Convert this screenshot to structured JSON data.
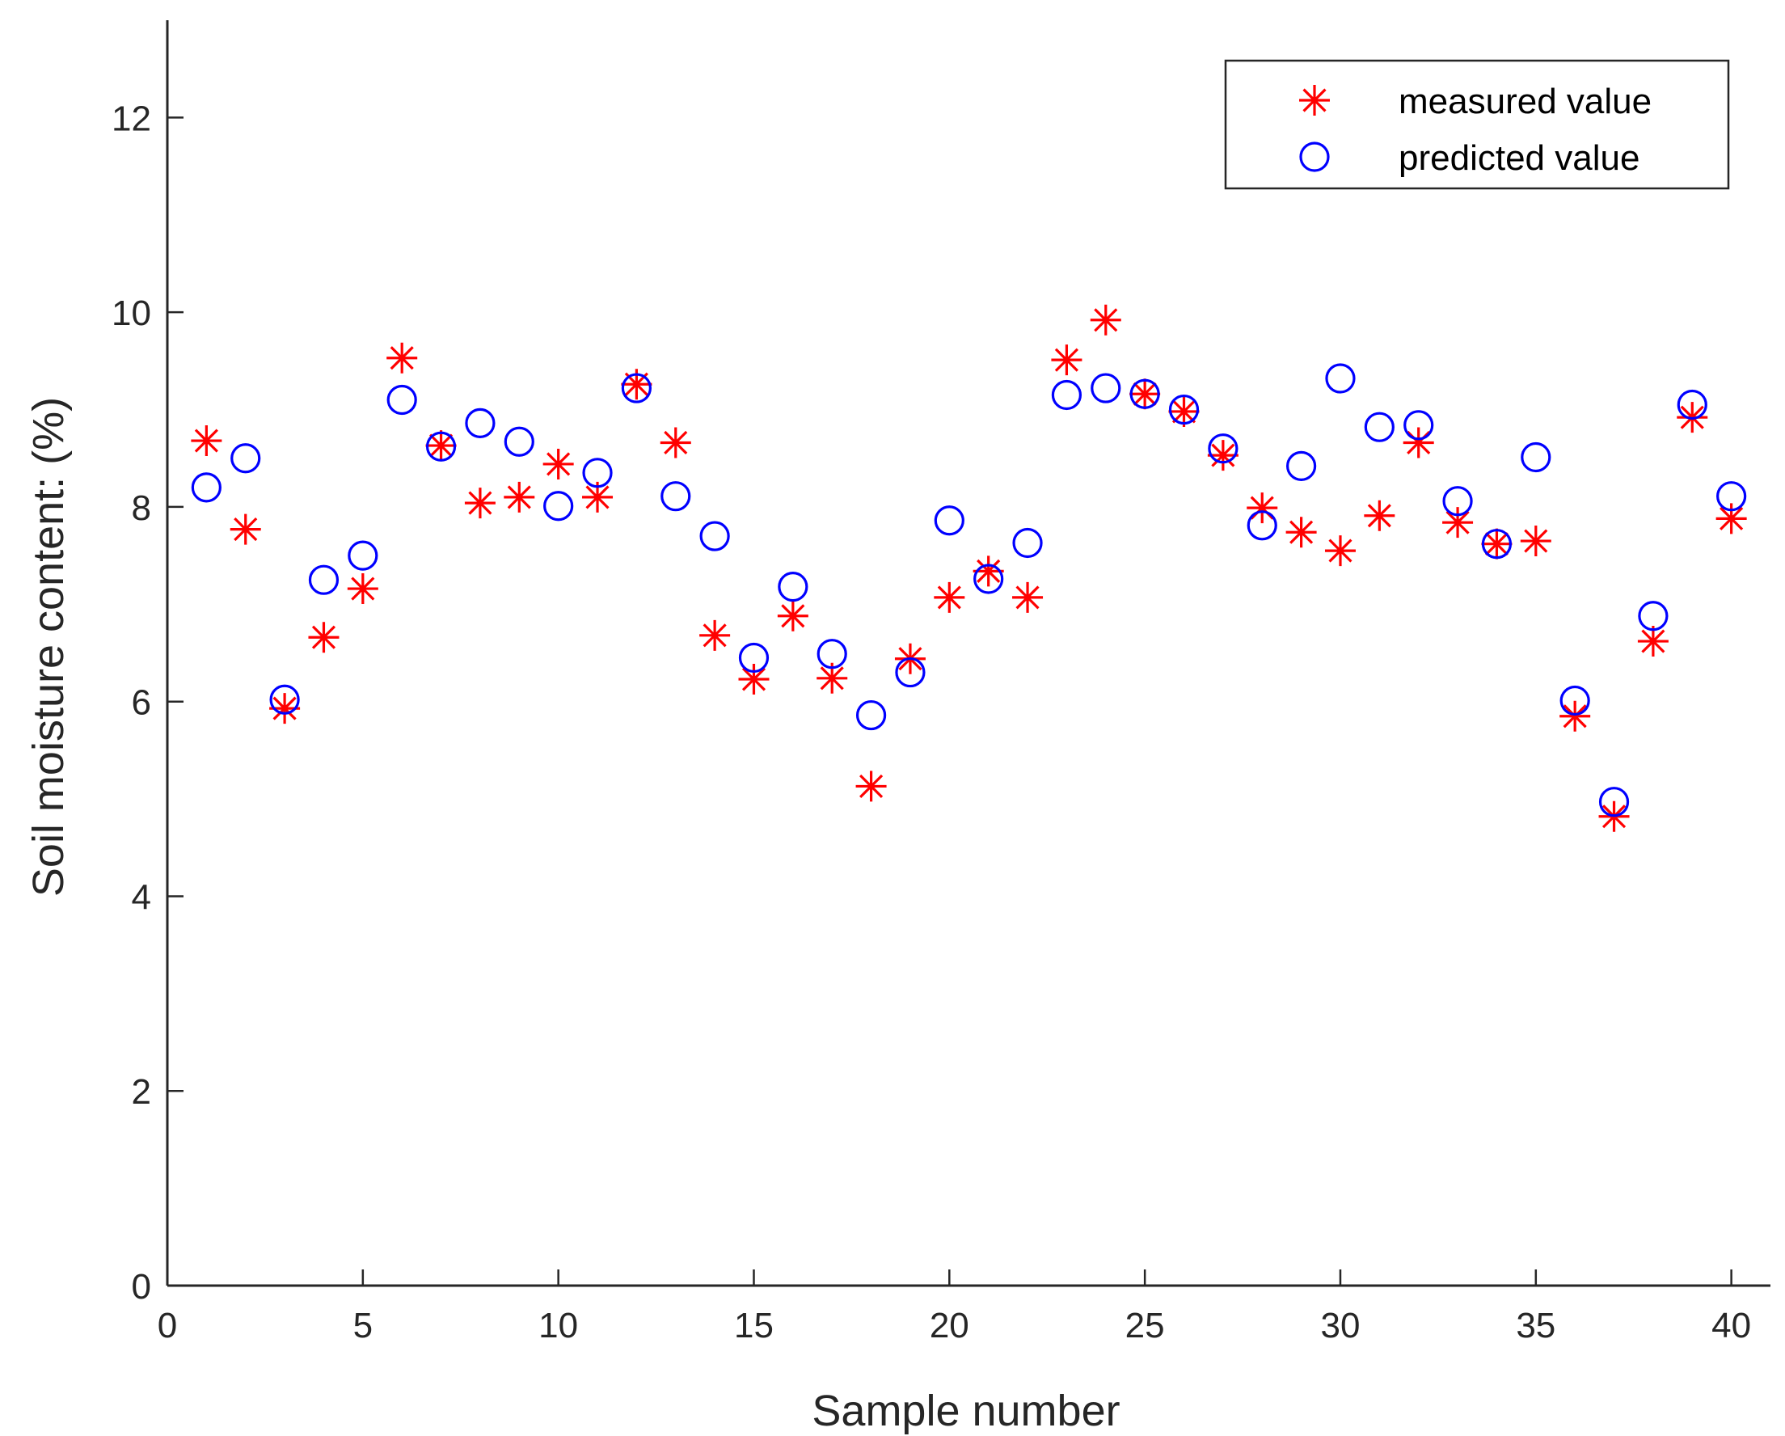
{
  "chart_data": {
    "type": "scatter",
    "title": "",
    "xlabel": "Sample number",
    "ylabel": "Soil moisture content: (%)",
    "xlim": [
      0,
      41
    ],
    "ylim": [
      0,
      13
    ],
    "xticks": [
      0,
      5,
      10,
      15,
      20,
      25,
      30,
      35,
      40
    ],
    "yticks": [
      0,
      2,
      4,
      6,
      8,
      10,
      12
    ],
    "grid": false,
    "legend_position": "top-right",
    "x": [
      1,
      2,
      3,
      4,
      5,
      6,
      7,
      8,
      9,
      10,
      11,
      12,
      13,
      14,
      15,
      16,
      17,
      18,
      19,
      20,
      21,
      22,
      23,
      24,
      25,
      26,
      27,
      28,
      29,
      30,
      31,
      32,
      33,
      34,
      35,
      36,
      37,
      38,
      39,
      40
    ],
    "series": [
      {
        "name": "measured value",
        "marker": "asterisk",
        "color": "#ff0000",
        "values": [
          8.68,
          7.77,
          5.93,
          6.66,
          7.16,
          9.53,
          8.63,
          8.04,
          8.1,
          8.44,
          8.1,
          9.26,
          8.66,
          6.68,
          6.23,
          6.88,
          6.24,
          5.13,
          6.44,
          7.07,
          7.34,
          7.07,
          9.51,
          9.92,
          9.16,
          8.98,
          8.53,
          7.99,
          7.74,
          7.55,
          7.91,
          8.66,
          7.84,
          7.62,
          7.65,
          5.85,
          4.82,
          6.62,
          8.92,
          7.88
        ]
      },
      {
        "name": "predicted value",
        "marker": "circle",
        "color": "#0000ff",
        "values": [
          8.2,
          8.5,
          6.02,
          7.25,
          7.5,
          9.1,
          8.62,
          8.86,
          8.67,
          8.01,
          8.35,
          9.22,
          8.11,
          7.7,
          6.45,
          7.18,
          6.49,
          5.86,
          6.3,
          7.86,
          7.26,
          7.63,
          9.15,
          9.22,
          9.16,
          9.0,
          8.6,
          7.81,
          8.42,
          9.32,
          8.82,
          8.84,
          8.06,
          7.62,
          8.51,
          6.01,
          4.97,
          6.88,
          9.05,
          8.11
        ]
      }
    ]
  }
}
